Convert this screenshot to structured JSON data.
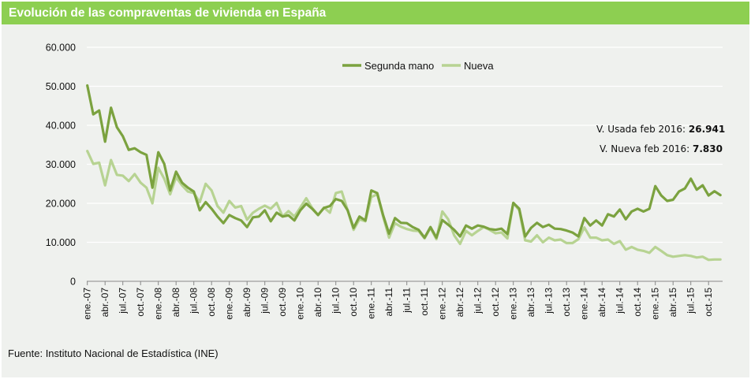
{
  "title": "Evolución de las compraventas de vivienda en España",
  "source": "Fuente: Instituto Nacional de Estadística (INE)",
  "colors": {
    "title_bar": "#8dcf51",
    "segunda_mano": "#7ba23f",
    "nueva": "#b7d392",
    "background": "#eff1ee"
  },
  "annotations": [
    {
      "label": "V. Usada feb 2016: ",
      "value": "26.941"
    },
    {
      "label": "V. Nueva feb 2016: ",
      "value": "7.830"
    }
  ],
  "chart_data": {
    "type": "line",
    "title": "Evolución de las compraventas de vivienda en España",
    "xlabel": "",
    "ylabel": "",
    "ylim": [
      0,
      60000
    ],
    "yticks": [
      "0",
      "10.000",
      "20.000",
      "30.000",
      "40.000",
      "50.000",
      "60.000"
    ],
    "grid": true,
    "legend_position": "top-center",
    "x_start": "ene-07",
    "x_tick_labels": [
      "ene.-07",
      "abr.-07",
      "jul.-07",
      "oct.-07",
      "ene.-08",
      "abr.-08",
      "jul.-08",
      "oct.-08",
      "ene.-09",
      "abr.-09",
      "jul.-09",
      "oct.-09",
      "ene.-10",
      "abr.-10",
      "jul.-10",
      "oct.-10",
      "ene.-11",
      "abr.-11",
      "jul.-11",
      "oct.-11",
      "ene.-12",
      "abr.-12",
      "jul.-12",
      "oct.-12",
      "ene.-13",
      "abr.-13",
      "jul.-13",
      "oct.-13",
      "ene.-14",
      "abr.-14",
      "jul.-14",
      "oct.-14",
      "ene.-15",
      "abr.-15",
      "jul.-15",
      "oct.-15"
    ],
    "series": [
      {
        "name": "Segunda mano",
        "values": [
          50200,
          42800,
          43800,
          35800,
          44500,
          39500,
          37200,
          33700,
          34100,
          33100,
          32400,
          24000,
          33100,
          30100,
          23300,
          28100,
          25300,
          24000,
          23000,
          18200,
          20300,
          18600,
          16600,
          14900,
          17000,
          16200,
          15600,
          13900,
          16400,
          16600,
          18200,
          15400,
          17600,
          16600,
          16900,
          15600,
          18200,
          19900,
          18600,
          17000,
          18800,
          19300,
          21100,
          20600,
          18200,
          13700,
          16600,
          15600,
          23300,
          22600,
          16900,
          12200,
          16200,
          15000,
          14900,
          13900,
          13200,
          11200,
          13900,
          11200,
          15700,
          14500,
          13200,
          11500,
          14300,
          13500,
          14300,
          14000,
          13400,
          13200,
          13500,
          12100,
          20100,
          18600,
          11500,
          13700,
          15000,
          13900,
          14500,
          13500,
          13400,
          13000,
          12500,
          11500,
          16200,
          14300,
          15600,
          14300,
          17200,
          16600,
          18400,
          15900,
          17900,
          18600,
          17900,
          18600,
          24400,
          22000,
          20600,
          20900,
          23000,
          23800,
          26300,
          23500,
          24600,
          22000,
          23100,
          22100
        ]
      },
      {
        "name": "Nueva",
        "values": [
          33400,
          30100,
          30400,
          24600,
          31100,
          27300,
          27100,
          25700,
          27500,
          25300,
          24000,
          20000,
          29100,
          26300,
          22300,
          26700,
          24600,
          23000,
          22600,
          20300,
          25000,
          23300,
          19300,
          17600,
          20600,
          18900,
          19300,
          15800,
          17600,
          18600,
          19400,
          18600,
          20100,
          16600,
          18000,
          16600,
          18900,
          21300,
          18800,
          17000,
          18900,
          17600,
          22600,
          23000,
          18200,
          13200,
          15900,
          15400,
          21600,
          22300,
          16600,
          11200,
          14900,
          14000,
          13400,
          13000,
          12900,
          11000,
          13700,
          10800,
          17900,
          15900,
          11800,
          9600,
          12900,
          11800,
          12900,
          13900,
          13200,
          12300,
          12500,
          11000,
          20100,
          18200,
          10500,
          10200,
          11800,
          10000,
          11200,
          10500,
          10700,
          9800,
          9800,
          10800,
          13800,
          11200,
          11200,
          10500,
          10700,
          9600,
          10300,
          8100,
          8800,
          8100,
          7800,
          7300,
          8800,
          7800,
          6700,
          6300,
          6500,
          6700,
          6500,
          6100,
          6300,
          5500,
          5600,
          5600
        ]
      }
    ]
  }
}
